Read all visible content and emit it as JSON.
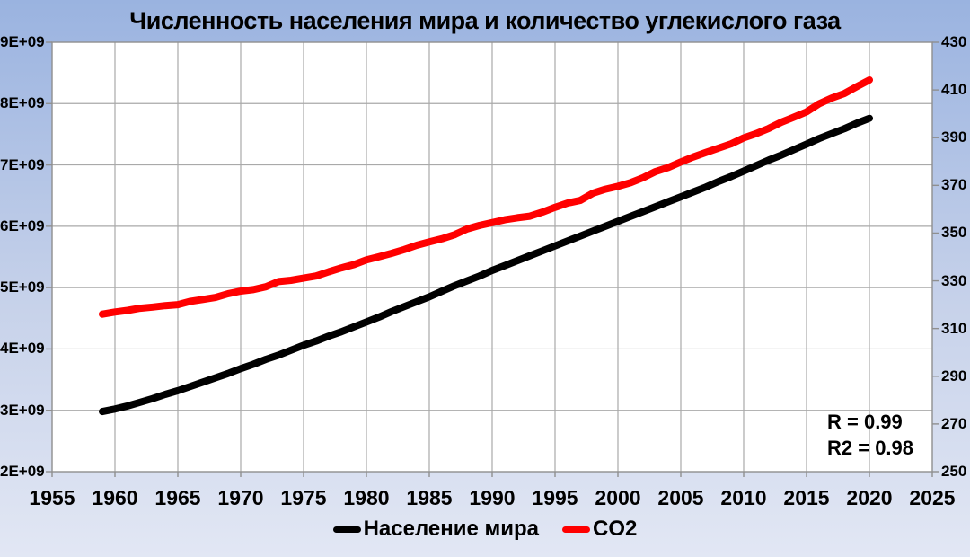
{
  "title": "Численность населения мира и количество углекислого газа",
  "annotation": {
    "r": "R = 0.99",
    "r2": "R2 = 0.98"
  },
  "legend": {
    "items": [
      {
        "id": "population",
        "label": "Население мира",
        "color": "#000000"
      },
      {
        "id": "co2",
        "label": "CO2",
        "color": "#ff0000"
      }
    ],
    "position": "bottom"
  },
  "axes": {
    "x_ticks": [
      "1955",
      "1960",
      "1965",
      "1970",
      "1975",
      "1980",
      "1985",
      "1990",
      "1995",
      "2000",
      "2005",
      "2010",
      "2015",
      "2020",
      "2025"
    ],
    "left_ticks": [
      "9E+09",
      "8E+09",
      "7E+09",
      "6E+09",
      "5E+09",
      "4E+09",
      "3E+09",
      "2E+09"
    ],
    "right_ticks": [
      "430",
      "410",
      "390",
      "370",
      "350",
      "330",
      "310",
      "290",
      "270",
      "250"
    ]
  },
  "chart_data": {
    "type": "line",
    "title": "Численность населения мира и количество углекислого газа",
    "xlabel": "",
    "ylabel_left": "",
    "ylabel_right": "",
    "x_axis": {
      "min": 1955,
      "max": 2025,
      "step": 5
    },
    "left_axis": {
      "min": 2000000000.0,
      "max": 9000000000.0,
      "step": 1000000000.0,
      "tick_format": "E+09"
    },
    "right_axis": {
      "min": 250,
      "max": 430,
      "step": 20
    },
    "grid": true,
    "legend_position": "bottom",
    "annotations": [
      "R = 0.99",
      "R2 = 0.98"
    ],
    "x": [
      1959,
      1960,
      1961,
      1962,
      1963,
      1964,
      1965,
      1966,
      1967,
      1968,
      1969,
      1970,
      1971,
      1972,
      1973,
      1974,
      1975,
      1976,
      1977,
      1978,
      1979,
      1980,
      1981,
      1982,
      1983,
      1984,
      1985,
      1986,
      1987,
      1988,
      1989,
      1990,
      1991,
      1992,
      1993,
      1994,
      1995,
      1996,
      1997,
      1998,
      1999,
      2000,
      2001,
      2002,
      2003,
      2004,
      2005,
      2006,
      2007,
      2008,
      2009,
      2010,
      2011,
      2012,
      2013,
      2014,
      2015,
      2016,
      2017,
      2018,
      2019,
      2020
    ],
    "series": [
      {
        "name": "Население мира",
        "axis": "left",
        "color": "#000000",
        "unit": "people (billions)",
        "values_billions": [
          2.98,
          3.02,
          3.07,
          3.13,
          3.19,
          3.26,
          3.32,
          3.39,
          3.46,
          3.53,
          3.6,
          3.68,
          3.75,
          3.83,
          3.9,
          3.98,
          4.06,
          4.13,
          4.21,
          4.28,
          4.36,
          4.44,
          4.52,
          4.61,
          4.69,
          4.77,
          4.85,
          4.94,
          5.03,
          5.11,
          5.19,
          5.28,
          5.36,
          5.44,
          5.52,
          5.6,
          5.68,
          5.76,
          5.84,
          5.92,
          6.0,
          6.08,
          6.16,
          6.24,
          6.32,
          6.4,
          6.48,
          6.56,
          6.64,
          6.73,
          6.81,
          6.9,
          6.99,
          7.08,
          7.16,
          7.25,
          7.34,
          7.43,
          7.51,
          7.59,
          7.68,
          7.76
        ]
      },
      {
        "name": "CO2",
        "axis": "right",
        "color": "#ff0000",
        "unit": "ppm",
        "values": [
          316.0,
          316.9,
          317.6,
          318.5,
          319.0,
          319.6,
          320.0,
          321.4,
          322.2,
          323.0,
          324.6,
          325.7,
          326.3,
          327.5,
          329.7,
          330.2,
          331.1,
          332.0,
          333.8,
          335.4,
          336.8,
          338.8,
          340.1,
          341.5,
          343.1,
          344.9,
          346.3,
          347.6,
          349.3,
          351.7,
          353.2,
          354.4,
          355.6,
          356.4,
          357.1,
          358.8,
          360.8,
          362.6,
          363.7,
          366.7,
          368.4,
          369.6,
          371.1,
          373.2,
          375.8,
          377.5,
          379.8,
          381.9,
          383.8,
          385.6,
          387.4,
          389.9,
          391.7,
          393.9,
          396.5,
          398.6,
          400.8,
          404.2,
          406.6,
          408.5,
          411.4,
          414.2
        ]
      }
    ]
  },
  "colors": {
    "background_top": "#9ab3e0",
    "background_bottom": "#e2e7f4",
    "plot_background": "#ffffff",
    "gridline": "#a9a9a9",
    "axis": "#8f8f8f",
    "population_line": "#000000",
    "co2_line": "#ff0000",
    "text": "#000000"
  }
}
